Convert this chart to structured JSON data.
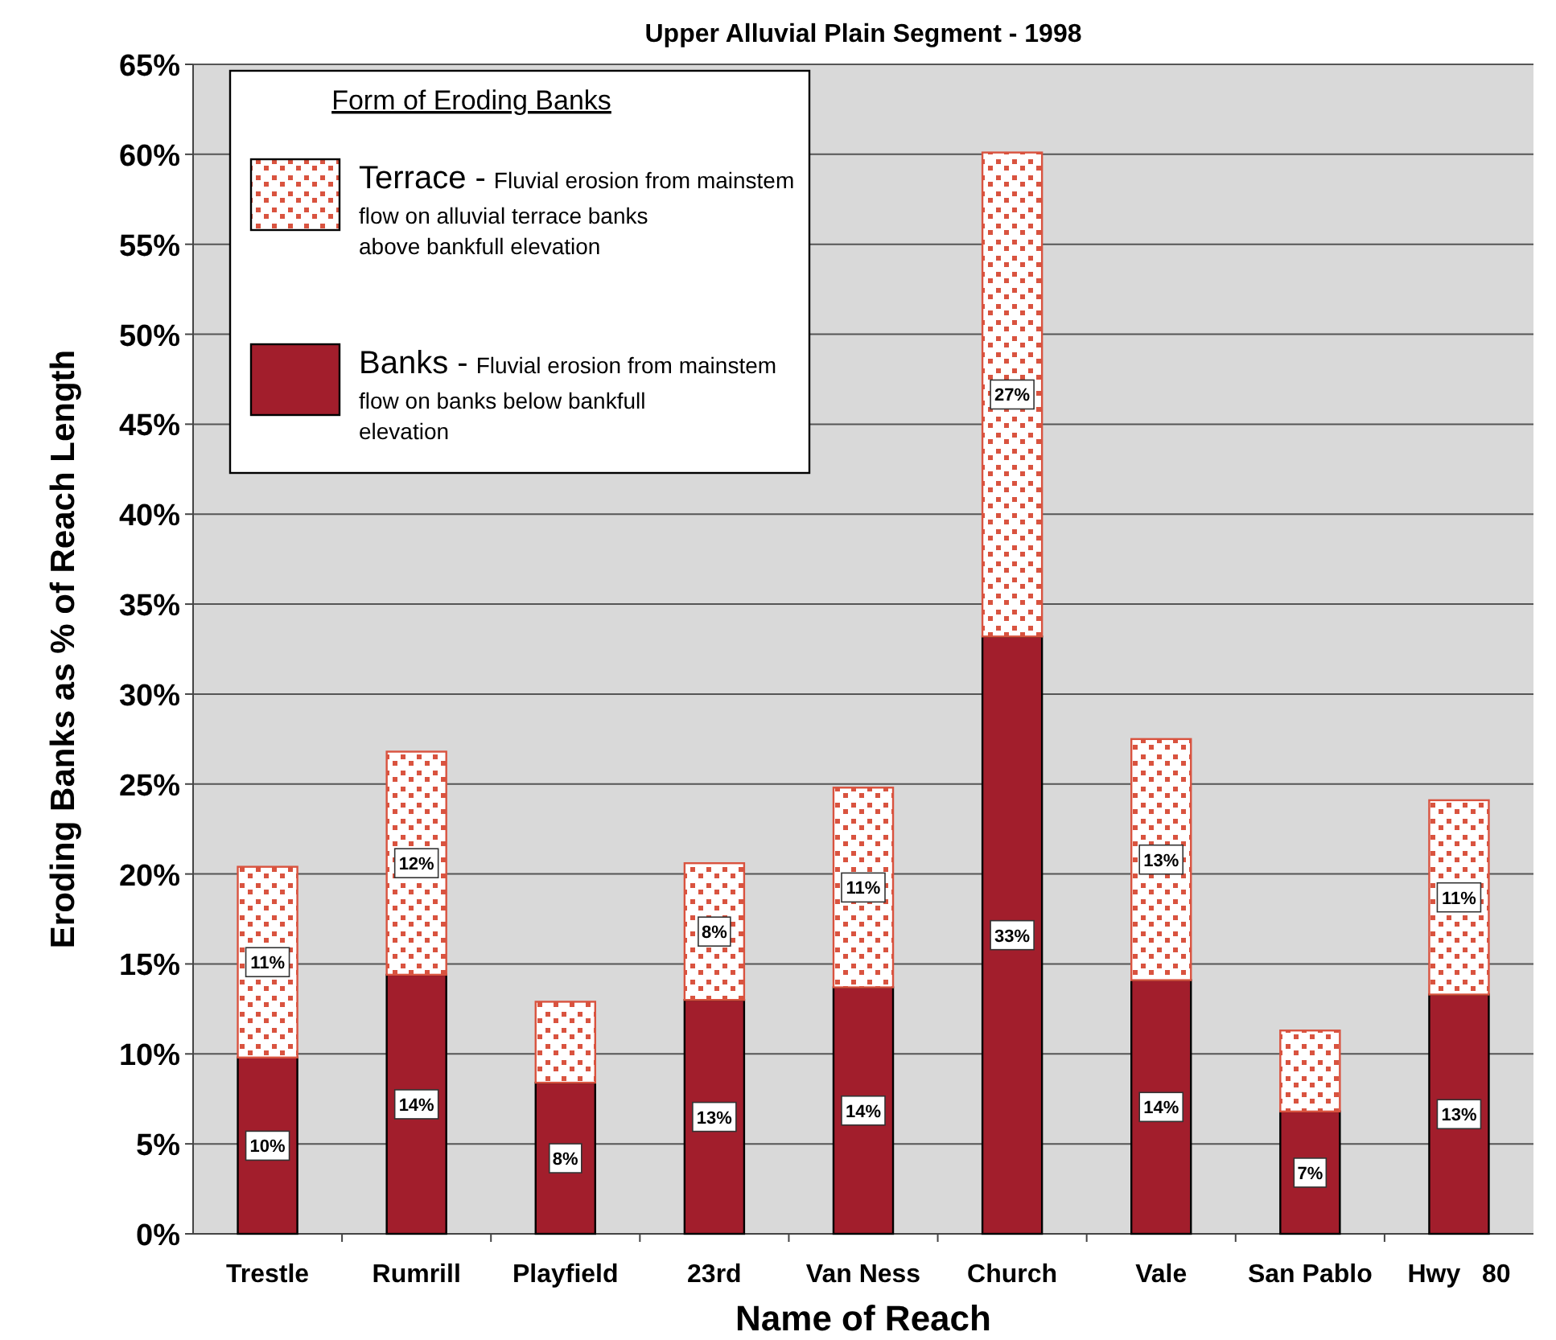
{
  "chart_data": {
    "type": "bar",
    "title": "Upper Alluvial Plain Segment - 1998",
    "xlabel": "Name of Reach",
    "ylabel": "Eroding Banks as % of Reach Length",
    "legend_title": "Form of Eroding Banks",
    "categories": [
      "Trestle",
      "Rumrill",
      "Playfield",
      "23rd",
      "Van Ness",
      "Church",
      "Vale",
      "San Pablo",
      "Hwy   80"
    ],
    "stacked": true,
    "series": [
      {
        "name": "Banks - Fluvial erosion from mainstem flow on banks below bankfull elevation",
        "color": "#a21e2c",
        "values": [
          9.8,
          14.4,
          8.4,
          13.0,
          13.7,
          33.2,
          14.1,
          6.8,
          13.3
        ],
        "value_labels": [
          "10%",
          "14%",
          "8%",
          "13%",
          "14%",
          "33%",
          "14%",
          "7%",
          "13%"
        ]
      },
      {
        "name": "Terrace - Fluvial erosion from mainstem flow on alluvial terrace banks above bankfull elevation",
        "color": "#d9533f",
        "values": [
          10.6,
          12.4,
          4.5,
          7.6,
          11.1,
          26.9,
          13.4,
          4.5,
          10.8
        ],
        "value_labels": [
          "11%",
          "12%",
          null,
          "8%",
          "11%",
          "27%",
          "13%",
          null,
          "11%"
        ]
      }
    ],
    "ylim": [
      0,
      65
    ],
    "yticks": [
      {
        "value": 0,
        "label": "0%"
      },
      {
        "value": 5,
        "label": "5%"
      },
      {
        "value": 10,
        "label": "10%"
      },
      {
        "value": 15,
        "label": "15%"
      },
      {
        "value": 20,
        "label": "20%"
      },
      {
        "value": 25,
        "label": "25%"
      },
      {
        "value": 30,
        "label": "30%"
      },
      {
        "value": 35,
        "label": "35%"
      },
      {
        "value": 40,
        "label": "40%"
      },
      {
        "value": 45,
        "label": "45%"
      },
      {
        "value": 50,
        "label": "50%"
      },
      {
        "value": 55,
        "label": "55%"
      },
      {
        "value": 60,
        "label": "60%"
      },
      {
        "value": 65,
        "label": "65%"
      }
    ],
    "grid": "y",
    "legend": "top left"
  }
}
